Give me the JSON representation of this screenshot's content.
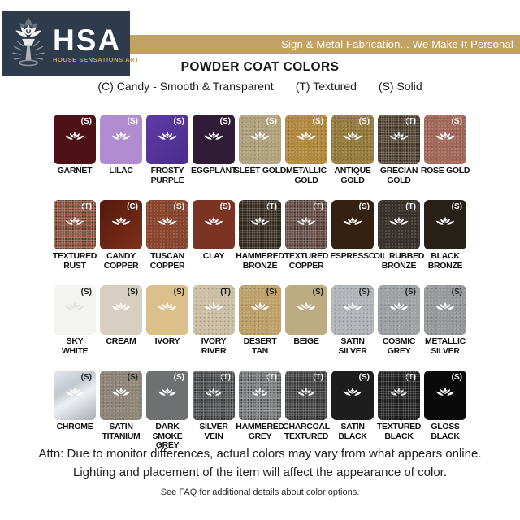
{
  "header": {
    "logo": {
      "acronym": "HSA",
      "subtitle": "HOUSE SENSATIONS ART"
    },
    "banner": {
      "tagline": "Sign & Metal Fabrication... We Make It Personal"
    }
  },
  "title": "POWDER COAT COLORS",
  "legend": {
    "candy": "(C) Candy - Smooth & Transparent",
    "textured": "(T) Textured",
    "solid": "(S) Solid"
  },
  "colors": {
    "banner_bg": "#c2a164",
    "logo_bg": "#2d3b4d",
    "logo_gold": "#c8a05e",
    "code_light": "#ffffff",
    "code_dark": "#1b1b1b"
  },
  "grid": {
    "rows": [
      [
        {
          "name": "GARNET",
          "code": "(S)",
          "bg": "#4e1117",
          "tex": 0,
          "dark": false
        },
        {
          "name": "LILAC",
          "code": "(S)",
          "bg": "#b18cd1",
          "tex": 0,
          "dark": false
        },
        {
          "name": "FROSTY\nPURPLE",
          "code": "(S)",
          "bg": "linear-gradient(135deg,#5d3da6,#4a2b8c)",
          "tex": 0,
          "dark": false
        },
        {
          "name": "EGGPLANT",
          "code": "(S)",
          "bg": "#301c36",
          "tex": 0,
          "dark": false
        },
        {
          "name": "SLEET GOLD",
          "code": "(S)",
          "bg": "#b1a37d",
          "tex": 1,
          "dark": false
        },
        {
          "name": "METALLIC\nGOLD",
          "code": "(S)",
          "bg": "#b28a3e",
          "tex": 1,
          "dark": false
        },
        {
          "name": "ANTIQUE\nGOLD",
          "code": "(S)",
          "bg": "#967d3e",
          "tex": 1,
          "dark": false
        },
        {
          "name": "GRECIAN\nGOLD",
          "code": "(T)",
          "bg": "#4a3a26",
          "tex": 2,
          "dark": false
        },
        {
          "name": "ROSE GOLD",
          "code": "(S)",
          "bg": "#a3685a",
          "tex": 1,
          "dark": false
        }
      ],
      [
        {
          "name": "TEXTURED\nRUST",
          "code": "(T)",
          "bg": "#8b4b33",
          "tex": 2,
          "dark": false
        },
        {
          "name": "CANDY\nCOPPER",
          "code": "(C)",
          "bg": "linear-gradient(135deg,#54180b,#7e311b)",
          "tex": 0,
          "dark": false
        },
        {
          "name": "TUSCAN\nCOPPER",
          "code": "(S)",
          "bg": "#8a462d",
          "tex": 1,
          "dark": false
        },
        {
          "name": "CLAY",
          "code": "(S)",
          "bg": "#7b3423",
          "tex": 0,
          "dark": false
        },
        {
          "name": "HAMMERED\nBRONZE",
          "code": "(T)",
          "bg": "#2b1f12",
          "tex": 2,
          "dark": false
        },
        {
          "name": "TEXTURED\nCOPPER",
          "code": "(T)",
          "bg": "#5e423a",
          "tex": 2,
          "dark": false
        },
        {
          "name": "ESPRESSO",
          "code": "(S)",
          "bg": "#342112",
          "tex": 0,
          "dark": false
        },
        {
          "name": "OIL RUBBED\nBRONZE",
          "code": "(T)",
          "bg": "#39322c",
          "tex": 1,
          "dark": false
        },
        {
          "name": "BLACK\nBRONZE",
          "code": "(S)",
          "bg": "#272019",
          "tex": 0,
          "dark": false
        }
      ],
      [
        {
          "name": "SKY\nWHITE",
          "code": "(S)",
          "bg": "#f3f3f1",
          "tex": 0,
          "dark": true,
          "lotus": "#e2e2df"
        },
        {
          "name": "CREAM",
          "code": "(S)",
          "bg": "#d7cfc1",
          "tex": 0,
          "dark": true
        },
        {
          "name": "IVORY",
          "code": "(S)",
          "bg": "#dcc08b",
          "tex": 0,
          "dark": true
        },
        {
          "name": "IVORY\nRIVER",
          "code": "(T)",
          "bg": "#cec0a4",
          "tex": 1,
          "dark": true
        },
        {
          "name": "DESERT\nTAN",
          "code": "(S)",
          "bg": "#bfa269",
          "tex": 1,
          "dark": true
        },
        {
          "name": "BEIGE",
          "code": "(S)",
          "bg": "#bdab81",
          "tex": 0,
          "dark": true
        },
        {
          "name": "SATIN\nSILVER",
          "code": "(S)",
          "bg": "#b2b6ba",
          "tex": 1,
          "dark": true
        },
        {
          "name": "COSMIC\nGREY",
          "code": "(S)",
          "bg": "#9fa3a6",
          "tex": 1,
          "dark": true
        },
        {
          "name": "METALLIC\nSILVER",
          "code": "(S)",
          "bg": "#97999c",
          "tex": 1,
          "dark": true
        }
      ],
      [
        {
          "name": "CHROME",
          "code": "(S)",
          "bg": "linear-gradient(150deg,#e6e9ee 0%,#c2c8cf 35%,#edf0f3 55%,#a8adb4 100%)",
          "tex": 0,
          "dark": true
        },
        {
          "name": "SATIN\nTITANIUM",
          "code": "(S)",
          "bg": "#8f877a",
          "tex": 1,
          "dark": true
        },
        {
          "name": "DARK SMOKE\nGREY",
          "code": "(S)",
          "bg": "#6e7071",
          "tex": 0,
          "dark": false
        },
        {
          "name": "SILVER\nVEIN",
          "code": "(T)",
          "bg": "#4b4c4e",
          "tex": 2,
          "dark": false
        },
        {
          "name": "HAMMERED\nGREY",
          "code": "(T)",
          "bg": "#7a7c7f",
          "tex": 2,
          "dark": false
        },
        {
          "name": "CHARCOAL\nTEXTURED",
          "code": "(T)",
          "bg": "#3b3b3b",
          "tex": 2,
          "dark": false
        },
        {
          "name": "SATIN\nBLACK",
          "code": "(S)",
          "bg": "#1d1d1d",
          "tex": 0,
          "dark": false
        },
        {
          "name": "TEXTURED\nBLACK",
          "code": "(T)",
          "bg": "#151515",
          "tex": 2,
          "dark": false
        },
        {
          "name": "GLOSS\nBLACK",
          "code": "(S)",
          "bg": "#0a0a0a",
          "tex": 0,
          "dark": false
        }
      ]
    ]
  },
  "footer": {
    "attn_line1": "Attn: Due to monitor differences, actual colors may vary from what appears online.",
    "attn_line2": "Lighting and placement of the item will affect the appearance of color.",
    "faq": "See FAQ for additional details about color options."
  }
}
